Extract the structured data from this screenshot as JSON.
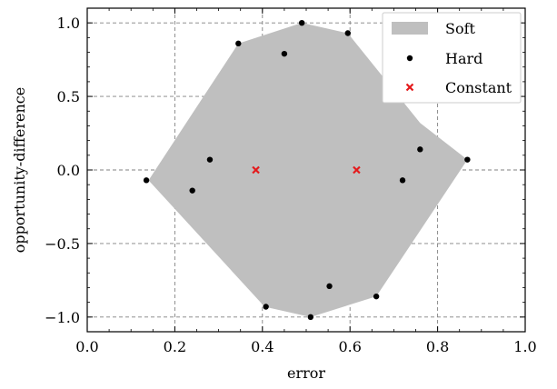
{
  "chart_data": {
    "type": "scatter",
    "xlabel": "error",
    "ylabel": "opportunity-difference",
    "xlim": [
      0.0,
      1.0
    ],
    "ylim": [
      -1.1,
      1.1
    ],
    "x_ticks": [
      {
        "value": 0.0,
        "label": "0.0"
      },
      {
        "value": 0.2,
        "label": "0.2"
      },
      {
        "value": 0.4,
        "label": "0.4"
      },
      {
        "value": 0.6,
        "label": "0.6"
      },
      {
        "value": 0.8,
        "label": "0.8"
      },
      {
        "value": 1.0,
        "label": "1.0"
      }
    ],
    "y_ticks": [
      {
        "value": -1.0,
        "label": "−1.0"
      },
      {
        "value": -0.5,
        "label": "−0.5"
      },
      {
        "value": 0.0,
        "label": "0.0"
      },
      {
        "value": 0.5,
        "label": "0.5"
      },
      {
        "value": 1.0,
        "label": "1.0"
      }
    ],
    "grid": true,
    "legend_position": "top-right",
    "series": [
      {
        "name": "Soft",
        "kind": "area",
        "color": "#bfbfbf",
        "points": [
          [
            0.14,
            -0.07
          ],
          [
            0.345,
            0.86
          ],
          [
            0.49,
            1.0
          ],
          [
            0.595,
            0.93
          ],
          [
            0.76,
            0.32
          ],
          [
            0.868,
            0.07
          ],
          [
            0.66,
            -0.86
          ],
          [
            0.51,
            -1.0
          ],
          [
            0.405,
            -0.93
          ]
        ]
      },
      {
        "name": "Hard",
        "kind": "scatter",
        "color": "#000000",
        "points": [
          [
            0.49,
            1.0
          ],
          [
            0.595,
            0.93
          ],
          [
            0.345,
            0.86
          ],
          [
            0.45,
            0.79
          ],
          [
            0.76,
            0.14
          ],
          [
            0.868,
            0.07
          ],
          [
            0.28,
            0.07
          ],
          [
            0.135,
            -0.07
          ],
          [
            0.72,
            -0.07
          ],
          [
            0.24,
            -0.14
          ],
          [
            0.553,
            -0.79
          ],
          [
            0.66,
            -0.86
          ],
          [
            0.408,
            -0.93
          ],
          [
            0.51,
            -1.0
          ]
        ]
      },
      {
        "name": "Constant",
        "kind": "scatter",
        "marker": "x",
        "color": "#e41a1c",
        "points": [
          [
            0.385,
            0.0
          ],
          [
            0.615,
            0.0
          ]
        ]
      }
    ]
  }
}
